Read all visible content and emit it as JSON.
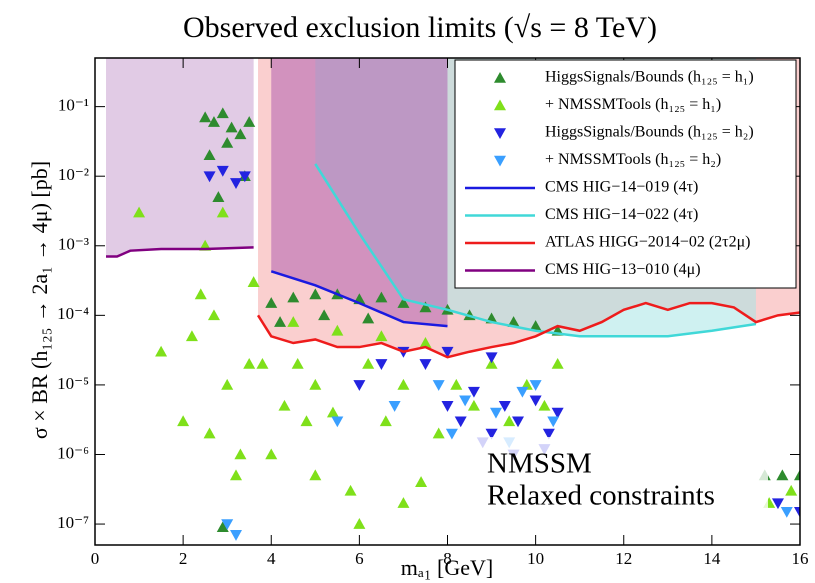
{
  "chart_data": {
    "type": "scatter",
    "title": "Observed exclusion limits (√s = 8 TeV)",
    "xlabel": "mₐ₁ [GeV]",
    "ylabel": "σ × BR (h₁₂₅ → 2a₁ → 4μ) [pb]",
    "xlim": [
      0,
      16
    ],
    "ylim": [
      5e-08,
      0.5
    ],
    "yscale": "log",
    "xticks": [
      0,
      2,
      4,
      6,
      8,
      10,
      12,
      14,
      16
    ],
    "yticks": [
      {
        "value": 1e-07,
        "label": "10⁻⁷"
      },
      {
        "value": 1e-06,
        "label": "10⁻⁶"
      },
      {
        "value": 1e-05,
        "label": "10⁻⁵"
      },
      {
        "value": 0.0001,
        "label": "10⁻⁴"
      },
      {
        "value": 0.001,
        "label": "10⁻³"
      },
      {
        "value": 0.01,
        "label": "10⁻²"
      },
      {
        "value": 0.1,
        "label": "10⁻¹"
      }
    ],
    "legend": "upper right",
    "annotation": [
      "NMSSM",
      "Relaxed constraints"
    ],
    "series": [
      {
        "name": "HiggsSignals/Bounds (h₁₂₅ = h₁)",
        "color": "#2e8b2e",
        "marker": "up",
        "x": [
          2.5,
          2.7,
          2.9,
          3.1,
          3.3,
          3.5,
          2.6,
          3.0,
          3.4,
          2.8,
          4.0,
          4.5,
          5.0,
          5.5,
          6.0,
          6.5,
          7.0,
          7.5,
          8.0,
          8.5,
          9.0,
          9.5,
          10.0,
          10.5,
          4.2,
          5.2,
          6.2,
          15.2,
          15.6,
          16.0,
          2.9
        ],
        "values": [
          0.07,
          0.06,
          0.08,
          0.05,
          0.04,
          0.06,
          0.02,
          0.03,
          0.01,
          0.005,
          0.00015,
          0.00018,
          0.0002,
          0.0002,
          0.00017,
          0.00018,
          0.00015,
          0.00013,
          0.00012,
          0.0001,
          9e-05,
          8e-05,
          7e-05,
          6e-05,
          8e-05,
          0.0001,
          9e-05,
          5e-07,
          5e-07,
          5e-07,
          9e-08
        ]
      },
      {
        "name": "+ NMSSMTools (h₁₂₅ = h₁)",
        "color": "#7fe01a",
        "marker": "up",
        "x": [
          1.0,
          1.5,
          2.0,
          2.5,
          2.7,
          3.0,
          3.3,
          3.6,
          2.6,
          3.2,
          2.4,
          2.9,
          3.5,
          4.0,
          4.3,
          4.6,
          5.0,
          5.4,
          5.8,
          6.2,
          6.6,
          7.0,
          7.4,
          7.8,
          8.2,
          8.6,
          9.0,
          9.4,
          9.8,
          10.2,
          10.5,
          4.5,
          5.5,
          6.5,
          7.5,
          6.0,
          5.0,
          7.0,
          15.3,
          15.8,
          2.2,
          3.8,
          4.8
        ],
        "values": [
          0.003,
          3e-05,
          3e-06,
          0.001,
          0.0001,
          1e-05,
          1e-06,
          0.0003,
          2e-06,
          5e-07,
          0.0002,
          0.003,
          2e-05,
          1e-06,
          5e-06,
          2e-05,
          1e-05,
          4e-06,
          3e-07,
          2e-05,
          3e-06,
          1e-05,
          4e-07,
          2e-06,
          1e-05,
          5e-06,
          2e-05,
          3e-06,
          1e-05,
          5e-06,
          2e-05,
          8e-05,
          6e-05,
          5e-05,
          4e-05,
          1e-07,
          5e-07,
          2e-07,
          2e-07,
          3e-07,
          5e-05,
          2e-05,
          3e-06
        ]
      },
      {
        "name": "HiggsSignals/Bounds (h₁₂₅ = h₂)",
        "color": "#2323e0",
        "marker": "down",
        "x": [
          2.6,
          2.9,
          3.2,
          3.4,
          7.0,
          7.5,
          8.0,
          8.3,
          8.6,
          9.0,
          9.3,
          9.6,
          10.0,
          10.3,
          10.5,
          8.8,
          9.5,
          10.2,
          6.5,
          6.0,
          15.5,
          16.0,
          8.0,
          9.0
        ],
        "values": [
          0.01,
          0.012,
          0.008,
          0.01,
          3e-05,
          2e-05,
          5e-06,
          3e-06,
          8e-06,
          2e-06,
          5e-06,
          3e-06,
          6e-06,
          2e-06,
          4e-06,
          1.5e-06,
          1e-06,
          1.2e-06,
          2e-05,
          1e-05,
          2e-07,
          1.5e-07,
          3e-05,
          2.5e-05
        ]
      },
      {
        "name": "+ NMSSMTools (h₁₂₅ = h₂)",
        "color": "#3a9fff",
        "marker": "down",
        "x": [
          3.0,
          3.2,
          7.8,
          8.4,
          9.1,
          9.7,
          10.4,
          8.1,
          9.4,
          10.0,
          15.7,
          5.5,
          6.8
        ],
        "values": [
          1e-07,
          7e-08,
          1e-05,
          6e-06,
          4e-06,
          8e-06,
          3e-06,
          2e-06,
          1.5e-06,
          1e-05,
          1.5e-07,
          3e-06,
          5e-06
        ]
      }
    ],
    "lines": [
      {
        "name": "CMS HIG−14−019 (4τ)",
        "color": "#1a1ae0",
        "fill": "#b060b0",
        "x": [
          4,
          5,
          6,
          7,
          8
        ],
        "values": [
          0.00043,
          0.00027,
          0.00015,
          8e-05,
          7e-05
        ]
      },
      {
        "name": "CMS HIG−14−022 (4τ)",
        "color": "#40d8d8",
        "fill": "#a8e6e6",
        "x": [
          5,
          6,
          7,
          8,
          9,
          10,
          11,
          12,
          13,
          14,
          15
        ],
        "values": [
          0.015,
          0.0015,
          0.00017,
          0.00012,
          8e-05,
          6e-05,
          5e-05,
          5e-05,
          5e-05,
          6e-05,
          7.5e-05
        ]
      },
      {
        "name": "ATLAS HIGG−2014−02 (2τ2μ)",
        "color": "#ee1c1c",
        "fill": "#f5a8a8",
        "x": [
          3.7,
          4,
          4.5,
          5,
          5.5,
          6,
          6.5,
          7,
          7.5,
          8,
          8.5,
          9,
          9.5,
          10,
          10.5,
          11,
          11.5,
          12,
          12.5,
          13,
          13.5,
          14,
          14.5,
          15,
          15.5,
          16
        ],
        "values": [
          0.0001,
          5e-05,
          4e-05,
          4.5e-05,
          3.5e-05,
          3.5e-05,
          4e-05,
          3e-05,
          3.5e-05,
          2.5e-05,
          3e-05,
          3.5e-05,
          4e-05,
          5e-05,
          7e-05,
          6e-05,
          8e-05,
          0.00012,
          0.00015,
          0.00012,
          0.00015,
          0.00015,
          0.00013,
          8e-05,
          0.0001,
          0.00011
        ]
      },
      {
        "name": "CMS HIG−13−010 (4μ)",
        "color": "#800080",
        "fill": "#c9a0cf",
        "x": [
          0.25,
          0.5,
          0.8,
          1.5,
          2.5,
          3.6
        ],
        "values": [
          0.0007,
          0.0007,
          0.00085,
          0.0009,
          0.0009,
          0.00095
        ]
      }
    ]
  }
}
